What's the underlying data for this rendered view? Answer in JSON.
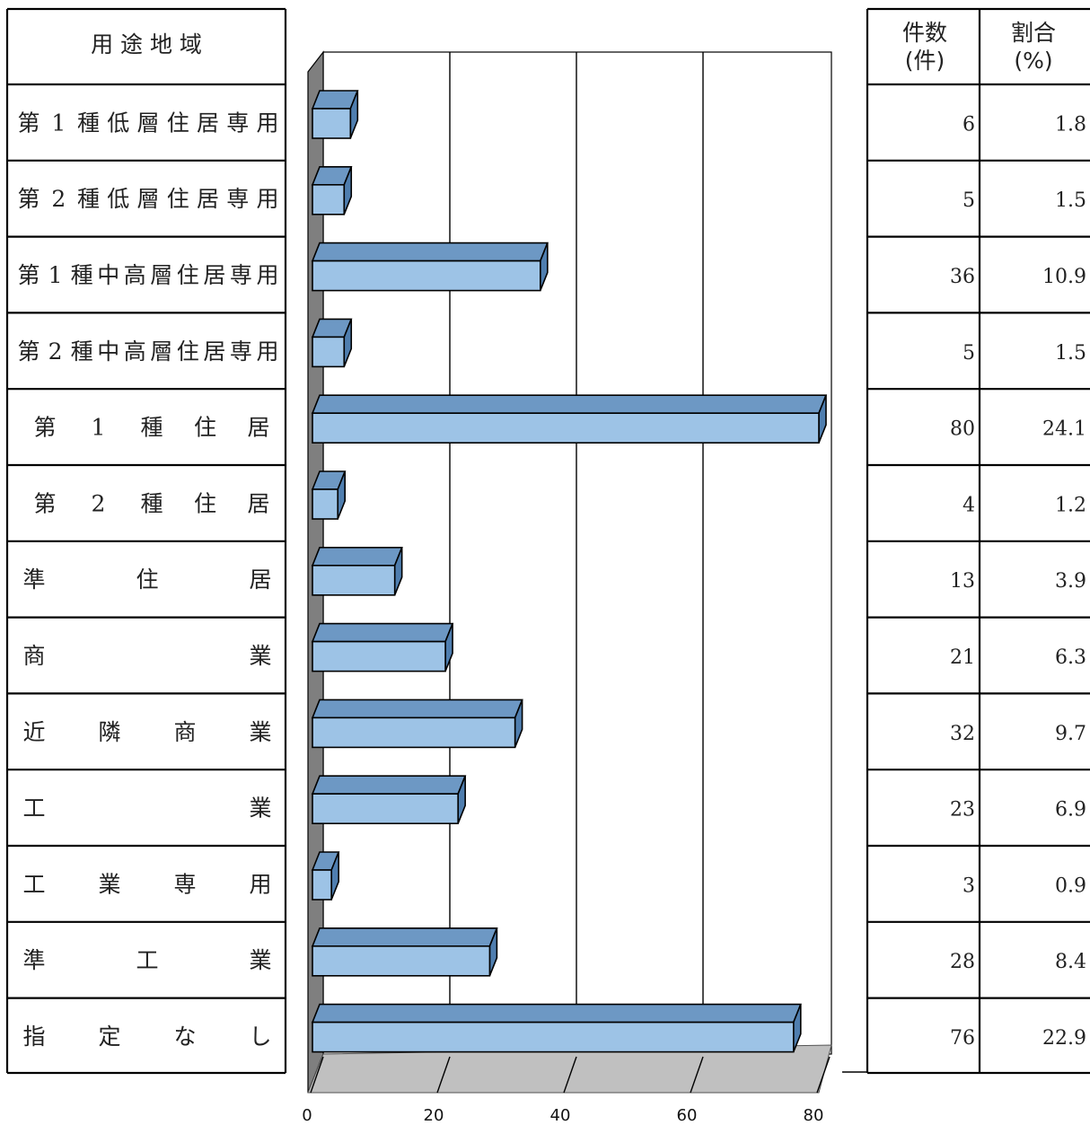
{
  "table": {
    "header_category": "用 途 地 域",
    "header_count_line1": "件数",
    "header_count_line2": "(件)",
    "header_ratio_line1": "割合",
    "header_ratio_line2": "(%)"
  },
  "chart_data": {
    "type": "bar",
    "orientation": "horizontal",
    "style": "3d",
    "categories": [
      "第1種低層住居専用",
      "第2種低層住居専用",
      "第1種中高層住居専用",
      "第2種中高層住居専用",
      "第1種住居",
      "第2種住居",
      "準住居",
      "商業",
      "近隣商業",
      "工業",
      "工業専用",
      "準工業",
      "指定なし"
    ],
    "category_labels": [
      [
        "第",
        "1",
        "種",
        "低",
        "層",
        "住",
        "居",
        "専",
        "用"
      ],
      [
        "第",
        "2",
        "種",
        "低",
        "層",
        "住",
        "居",
        "専",
        "用"
      ],
      [
        "第",
        "1",
        "種",
        "中",
        "高",
        "層",
        "住",
        "居",
        "専",
        "用"
      ],
      [
        "第",
        "2",
        "種",
        "中",
        "高",
        "層",
        "住",
        "居",
        "専",
        "用"
      ],
      [
        "第",
        "1",
        "種",
        "住",
        "居"
      ],
      [
        "第",
        "2",
        "種",
        "住",
        "居"
      ],
      [
        "準",
        "住",
        "居"
      ],
      [
        "商",
        "業"
      ],
      [
        "近",
        "隣",
        "商",
        "業"
      ],
      [
        "工",
        "業"
      ],
      [
        "工",
        "業",
        "専",
        "用"
      ],
      [
        "準",
        "工",
        "業"
      ],
      [
        "指",
        "定",
        "な",
        "し"
      ]
    ],
    "values": [
      6,
      5,
      36,
      5,
      80,
      4,
      13,
      21,
      32,
      23,
      3,
      28,
      76
    ],
    "counts_display": [
      "6",
      "5",
      "36",
      "5",
      "80",
      "4",
      "13",
      "21",
      "32",
      "23",
      "3",
      "28",
      "76"
    ],
    "percent_display": [
      "1.8",
      "1.5",
      "10.9",
      "1.5",
      "24.1",
      "1.2",
      "3.9",
      "6.3",
      "9.7",
      "6.9",
      "0.9",
      "8.4",
      "22.9"
    ],
    "xlim": [
      0,
      80
    ],
    "xticks": [
      "0",
      "20",
      "40",
      "60",
      "80"
    ],
    "grid": true,
    "legend": false,
    "colors": {
      "bar_front": "#9dc3e6",
      "bar_top": "#6d98c4",
      "bar_side": "#4f7eaf",
      "wall": "#7f7f7f",
      "floor": "#c0c0c0",
      "outline": "#000000"
    }
  }
}
